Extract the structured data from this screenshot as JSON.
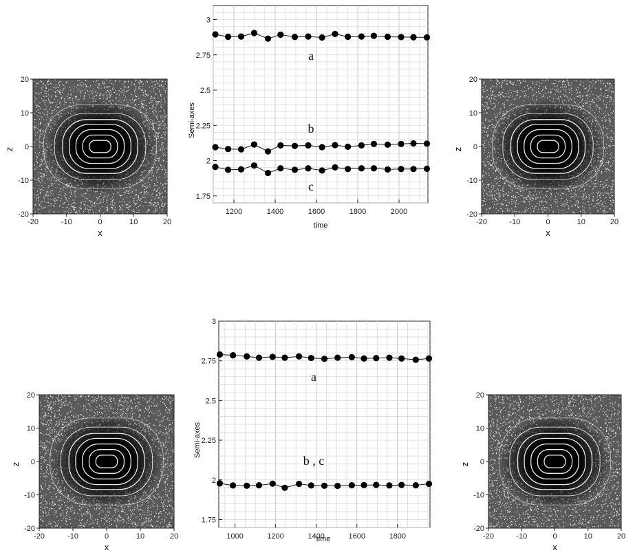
{
  "chart_data": [
    {
      "type": "line",
      "ylabel": "Semi-axes",
      "xlabel": "time",
      "xlim": [
        1100,
        2140
      ],
      "ylim": [
        1.7,
        3.1
      ],
      "xticks": [
        "1200",
        "1400",
        "1600",
        "1800",
        "2000"
      ],
      "yticks": [
        "1.75",
        "2",
        "2.25",
        "2.5",
        "2.75",
        "3"
      ],
      "x": [
        1110,
        1172,
        1235,
        1298,
        1365,
        1426,
        1495,
        1560,
        1627,
        1690,
        1752,
        1818,
        1878,
        1945,
        2010,
        2070,
        2135
      ],
      "series": [
        {
          "name": "a",
          "values": [
            2.895,
            2.878,
            2.88,
            2.905,
            2.865,
            2.893,
            2.877,
            2.88,
            2.873,
            2.898,
            2.878,
            2.88,
            2.885,
            2.878,
            2.876,
            2.875,
            2.874
          ]
        },
        {
          "name": "b",
          "values": [
            2.095,
            2.082,
            2.08,
            2.114,
            2.065,
            2.108,
            2.104,
            2.108,
            2.095,
            2.11,
            2.098,
            2.108,
            2.118,
            2.113,
            2.118,
            2.122,
            2.12
          ]
        },
        {
          "name": "c",
          "values": [
            1.955,
            1.935,
            1.938,
            1.965,
            1.912,
            1.945,
            1.935,
            1.945,
            1.93,
            1.952,
            1.94,
            1.945,
            1.945,
            1.937,
            1.94,
            1.94,
            1.942
          ]
        }
      ]
    },
    {
      "type": "line",
      "ylabel": "Semi-axes",
      "xlabel": "time",
      "xlim": [
        920,
        1960
      ],
      "ylim": [
        1.7,
        3.0
      ],
      "xticks": [
        "1000",
        "1200",
        "1400",
        "1600",
        "1800"
      ],
      "yticks": [
        "1.75",
        "2",
        "2.25",
        "2.5",
        "2.75",
        "3"
      ],
      "x": [
        925,
        990,
        1058,
        1118,
        1185,
        1245,
        1315,
        1375,
        1440,
        1505,
        1575,
        1635,
        1695,
        1760,
        1820,
        1890,
        1955
      ],
      "series": [
        {
          "name": "a",
          "values": [
            2.79,
            2.785,
            2.778,
            2.77,
            2.775,
            2.77,
            2.778,
            2.768,
            2.763,
            2.77,
            2.773,
            2.765,
            2.767,
            2.77,
            2.765,
            2.757,
            2.765
          ]
        },
        {
          "name": "b , c",
          "values": [
            1.978,
            1.965,
            1.963,
            1.966,
            1.976,
            1.95,
            1.975,
            1.965,
            1.963,
            1.962,
            1.966,
            1.967,
            1.968,
            1.965,
            1.968,
            1.966,
            1.975
          ]
        }
      ]
    }
  ],
  "density_plots": [
    {
      "xlabel": "x",
      "ylabel": "z",
      "xticks": [
        "-20",
        "-10",
        "0",
        "10",
        "20"
      ],
      "yticks": [
        "20",
        "10",
        "0",
        "-10",
        "-20"
      ],
      "xlim": [
        -20,
        20
      ],
      "ylim": [
        -20,
        20
      ]
    },
    {
      "xlabel": "x",
      "ylabel": "z",
      "xticks": [
        "-20",
        "-10",
        "0",
        "10",
        "20"
      ],
      "yticks": [
        "20",
        "10",
        "0",
        "-10",
        "-20"
      ],
      "xlim": [
        -20,
        20
      ],
      "ylim": [
        -20,
        20
      ]
    },
    {
      "xlabel": "x",
      "ylabel": "z",
      "xticks": [
        "-20",
        "-10",
        "0",
        "10",
        "20"
      ],
      "yticks": [
        "20",
        "10",
        "0",
        "-10",
        "-20"
      ],
      "xlim": [
        -20,
        20
      ],
      "ylim": [
        -20,
        20
      ]
    },
    {
      "xlabel": "x",
      "ylabel": "z",
      "xticks": [
        "-20",
        "-10",
        "0",
        "10",
        "20"
      ],
      "yticks": [
        "20",
        "10",
        "0",
        "-10",
        "-20"
      ],
      "xlim": [
        -20,
        20
      ],
      "ylim": [
        -20,
        20
      ]
    }
  ],
  "colors": {
    "ink": "#111111",
    "grid": "#c8c8c8",
    "background": "#ffffff"
  }
}
